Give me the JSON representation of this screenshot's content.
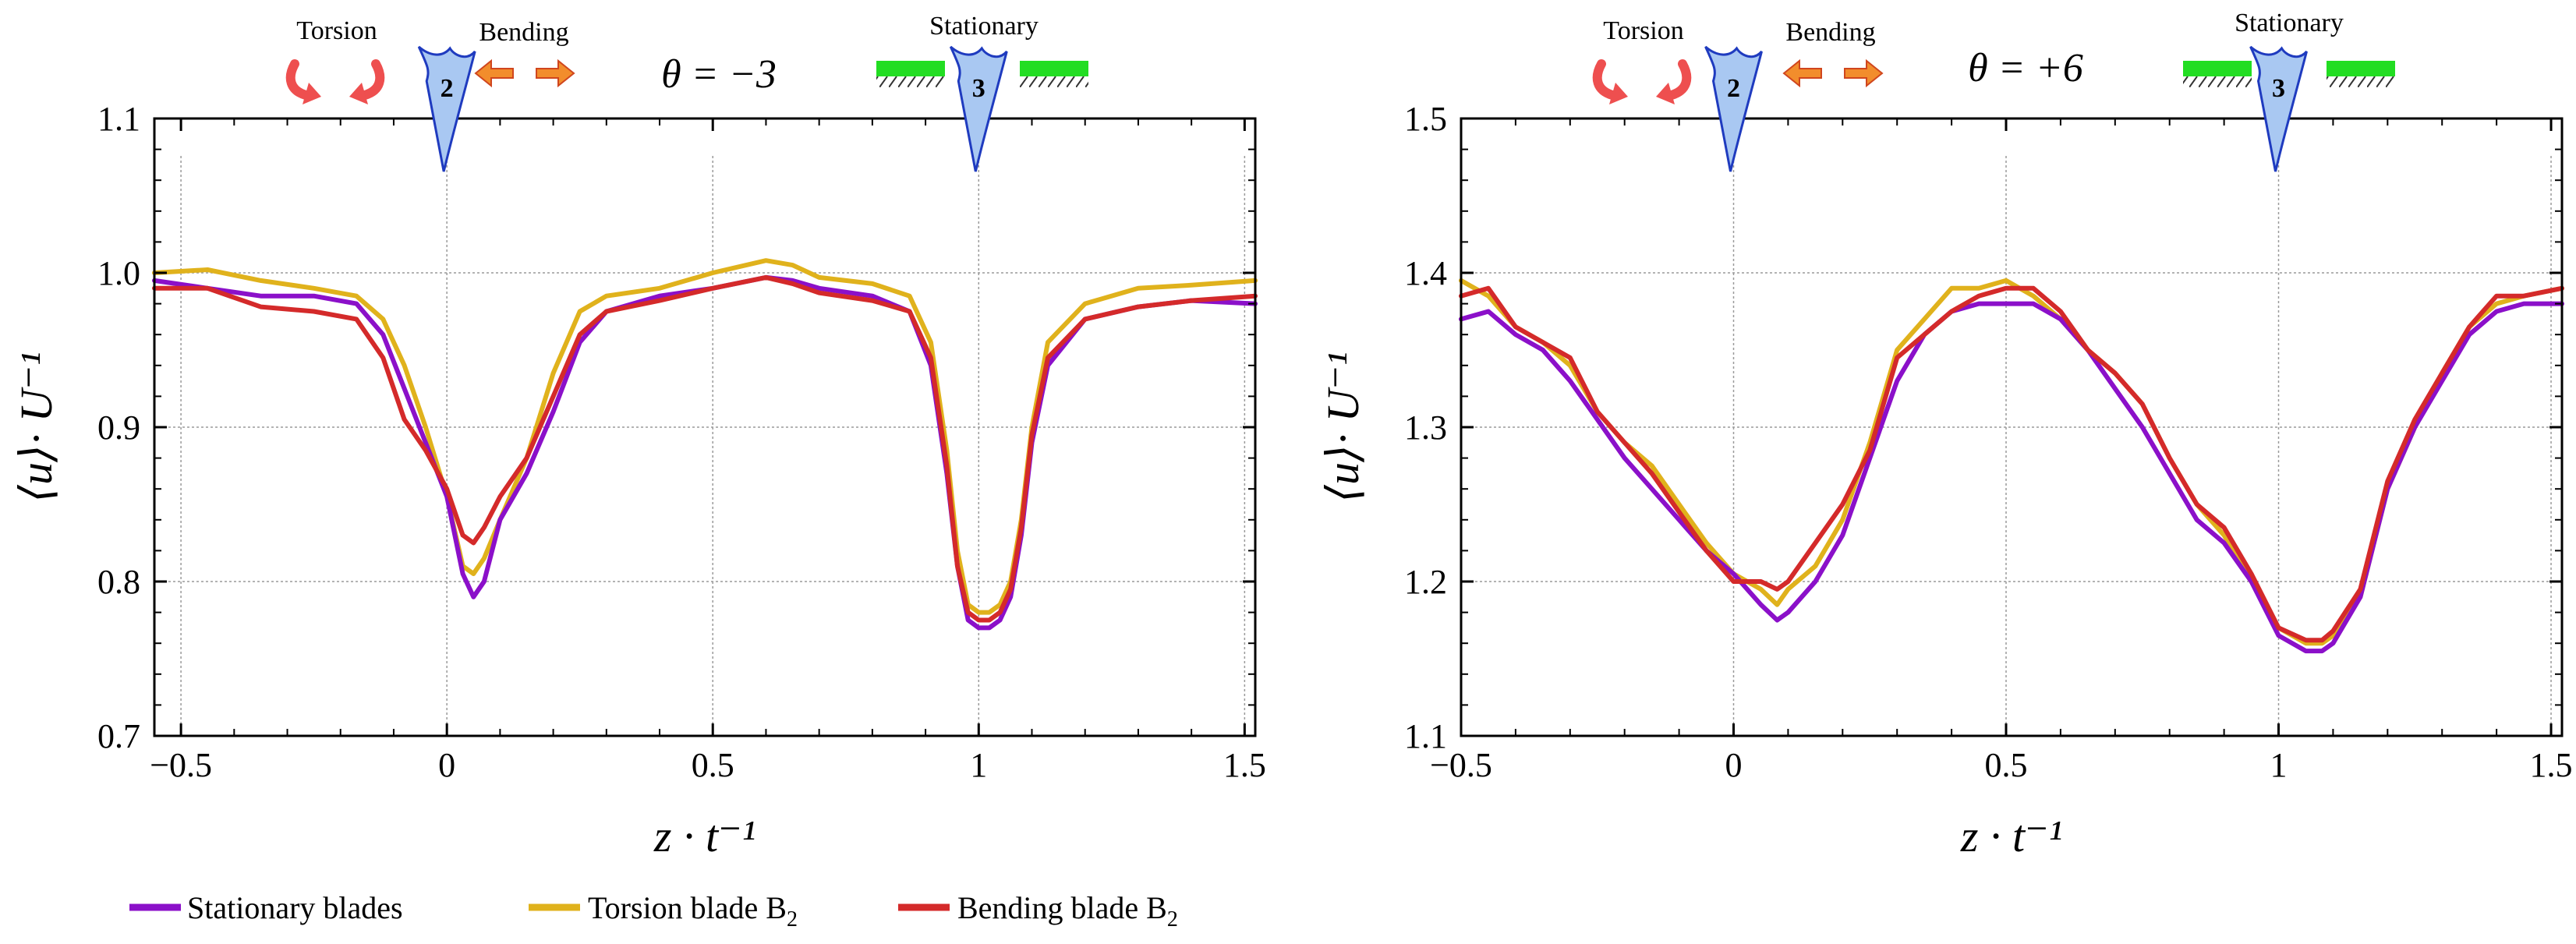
{
  "colors": {
    "stationary": "#8b10c9",
    "torsion": "#e0b21c",
    "bending": "#d42a2a",
    "grid": "#9a9a9a",
    "blade_fill": "#a9c8f2",
    "blade_stroke": "#1f3bbf",
    "arrow_red": "#ee4f4f",
    "arrow_orange": "#f28d2c",
    "ground_green": "#22dd22"
  },
  "icons": [
    "torsion-arrows-icon",
    "bending-arrows-icon",
    "blade-icon",
    "ground-hatch-icon"
  ],
  "legend": [
    {
      "key": "stationary",
      "label": "Stationary blades",
      "sub": ""
    },
    {
      "key": "torsion",
      "label": "Torsion blade B",
      "sub": "2"
    },
    {
      "key": "bending",
      "label": "Bending blade B",
      "sub": "2"
    }
  ],
  "chart_data": [
    {
      "type": "line",
      "annotations": {
        "torsion": "Torsion",
        "bending": "Bending",
        "stationary": "Stationary",
        "blade_left": "2",
        "blade_right": "3",
        "theta": "θ = −3"
      },
      "xlabel": "z · t⁻¹",
      "ylabel": "⟨u⟩· U⁻¹",
      "xlim": [
        -0.55,
        1.52
      ],
      "ylim": [
        0.7,
        1.1
      ],
      "xticks": [
        -0.5,
        0,
        0.5,
        1,
        1.5
      ],
      "xticklabels": [
        "−0.5",
        "0",
        "0.5",
        "1",
        "1.5"
      ],
      "yticks": [
        0.7,
        0.8,
        0.9,
        1.0,
        1.1
      ],
      "yticklabels": [
        "0.7",
        "0.8",
        "0.9",
        "1.0",
        "1.1"
      ],
      "series": [
        {
          "key": "stationary",
          "name": "Stationary blades",
          "x": [
            -0.55,
            -0.45,
            -0.35,
            -0.25,
            -0.17,
            -0.12,
            -0.08,
            -0.04,
            0,
            0.03,
            0.05,
            0.07,
            0.1,
            0.15,
            0.2,
            0.25,
            0.3,
            0.4,
            0.5,
            0.6,
            0.65,
            0.7,
            0.8,
            0.87,
            0.91,
            0.94,
            0.96,
            0.98,
            1,
            1.02,
            1.04,
            1.06,
            1.08,
            1.1,
            1.13,
            1.2,
            1.3,
            1.4,
            1.52
          ],
          "y": [
            0.995,
            0.99,
            0.985,
            0.985,
            0.98,
            0.96,
            0.925,
            0.89,
            0.855,
            0.805,
            0.79,
            0.8,
            0.84,
            0.87,
            0.91,
            0.955,
            0.975,
            0.985,
            0.99,
            0.997,
            0.995,
            0.99,
            0.985,
            0.975,
            0.94,
            0.87,
            0.81,
            0.775,
            0.77,
            0.77,
            0.775,
            0.79,
            0.83,
            0.89,
            0.94,
            0.97,
            0.978,
            0.982,
            0.98
          ]
        },
        {
          "key": "torsion",
          "name": "Torsion blade B2",
          "x": [
            -0.55,
            -0.45,
            -0.35,
            -0.25,
            -0.17,
            -0.12,
            -0.08,
            -0.04,
            0,
            0.03,
            0.05,
            0.07,
            0.1,
            0.15,
            0.2,
            0.25,
            0.3,
            0.4,
            0.5,
            0.6,
            0.65,
            0.7,
            0.8,
            0.87,
            0.91,
            0.94,
            0.96,
            0.98,
            1,
            1.02,
            1.04,
            1.06,
            1.08,
            1.1,
            1.13,
            1.2,
            1.3,
            1.4,
            1.52
          ],
          "y": [
            1.0,
            1.002,
            0.995,
            0.99,
            0.985,
            0.97,
            0.94,
            0.9,
            0.855,
            0.81,
            0.805,
            0.815,
            0.84,
            0.88,
            0.935,
            0.975,
            0.985,
            0.99,
            1.0,
            1.008,
            1.005,
            0.997,
            0.993,
            0.985,
            0.955,
            0.885,
            0.82,
            0.785,
            0.78,
            0.78,
            0.785,
            0.8,
            0.84,
            0.9,
            0.955,
            0.98,
            0.99,
            0.992,
            0.995
          ]
        },
        {
          "key": "bending",
          "name": "Bending blade B2",
          "x": [
            -0.55,
            -0.45,
            -0.35,
            -0.25,
            -0.17,
            -0.12,
            -0.08,
            -0.04,
            0,
            0.03,
            0.05,
            0.07,
            0.1,
            0.15,
            0.2,
            0.25,
            0.3,
            0.4,
            0.5,
            0.6,
            0.65,
            0.7,
            0.8,
            0.87,
            0.91,
            0.94,
            0.96,
            0.98,
            1,
            1.02,
            1.04,
            1.06,
            1.08,
            1.1,
            1.13,
            1.2,
            1.3,
            1.4,
            1.52
          ],
          "y": [
            0.99,
            0.99,
            0.978,
            0.975,
            0.97,
            0.945,
            0.905,
            0.885,
            0.86,
            0.83,
            0.825,
            0.835,
            0.855,
            0.88,
            0.92,
            0.96,
            0.975,
            0.982,
            0.99,
            0.997,
            0.993,
            0.987,
            0.982,
            0.975,
            0.945,
            0.875,
            0.81,
            0.78,
            0.775,
            0.775,
            0.78,
            0.795,
            0.835,
            0.895,
            0.945,
            0.97,
            0.978,
            0.982,
            0.985
          ]
        }
      ]
    },
    {
      "type": "line",
      "annotations": {
        "torsion": "Torsion",
        "bending": "Bending",
        "stationary": "Stationary",
        "blade_left": "2",
        "blade_right": "3",
        "theta": "θ = +6"
      },
      "xlabel": "z · t⁻¹",
      "ylabel": "⟨u⟩· U⁻¹",
      "xlim": [
        -0.5,
        1.52
      ],
      "ylim": [
        1.1,
        1.5
      ],
      "xticks": [
        -0.5,
        0,
        0.5,
        1,
        1.5
      ],
      "xticklabels": [
        "−0.5",
        "0",
        "0.5",
        "1",
        "1.5"
      ],
      "yticks": [
        1.1,
        1.2,
        1.3,
        1.4,
        1.5
      ],
      "yticklabels": [
        "1.1",
        "1.2",
        "1.3",
        "1.4",
        "1.5"
      ],
      "series": [
        {
          "key": "stationary",
          "name": "Stationary blades",
          "x": [
            -0.5,
            -0.45,
            -0.4,
            -0.35,
            -0.3,
            -0.25,
            -0.2,
            -0.15,
            -0.1,
            -0.05,
            0,
            0.05,
            0.08,
            0.1,
            0.15,
            0.2,
            0.25,
            0.3,
            0.35,
            0.4,
            0.45,
            0.5,
            0.55,
            0.6,
            0.65,
            0.7,
            0.75,
            0.8,
            0.85,
            0.9,
            0.95,
            1,
            1.05,
            1.08,
            1.1,
            1.15,
            1.2,
            1.25,
            1.3,
            1.35,
            1.4,
            1.45,
            1.52
          ],
          "y": [
            1.37,
            1.375,
            1.36,
            1.35,
            1.33,
            1.305,
            1.28,
            1.26,
            1.24,
            1.22,
            1.205,
            1.185,
            1.175,
            1.18,
            1.2,
            1.23,
            1.28,
            1.33,
            1.36,
            1.375,
            1.38,
            1.38,
            1.38,
            1.37,
            1.35,
            1.325,
            1.3,
            1.27,
            1.24,
            1.225,
            1.2,
            1.165,
            1.155,
            1.155,
            1.16,
            1.19,
            1.26,
            1.3,
            1.33,
            1.36,
            1.375,
            1.38,
            1.38
          ]
        },
        {
          "key": "torsion",
          "name": "Torsion blade B2",
          "x": [
            -0.5,
            -0.45,
            -0.4,
            -0.35,
            -0.3,
            -0.25,
            -0.2,
            -0.15,
            -0.1,
            -0.05,
            0,
            0.05,
            0.08,
            0.1,
            0.15,
            0.2,
            0.25,
            0.3,
            0.35,
            0.4,
            0.45,
            0.5,
            0.55,
            0.6,
            0.65,
            0.7,
            0.75,
            0.8,
            0.85,
            0.9,
            0.95,
            1,
            1.05,
            1.08,
            1.1,
            1.15,
            1.2,
            1.25,
            1.3,
            1.35,
            1.4,
            1.45,
            1.52
          ],
          "y": [
            1.395,
            1.385,
            1.365,
            1.355,
            1.34,
            1.31,
            1.29,
            1.275,
            1.25,
            1.225,
            1.205,
            1.195,
            1.185,
            1.195,
            1.21,
            1.24,
            1.29,
            1.35,
            1.37,
            1.39,
            1.39,
            1.395,
            1.385,
            1.37,
            1.35,
            1.335,
            1.315,
            1.28,
            1.25,
            1.23,
            1.2,
            1.17,
            1.16,
            1.16,
            1.165,
            1.19,
            1.26,
            1.3,
            1.335,
            1.365,
            1.38,
            1.385,
            1.39
          ]
        },
        {
          "key": "bending",
          "name": "Bending blade B2",
          "x": [
            -0.5,
            -0.45,
            -0.4,
            -0.35,
            -0.3,
            -0.25,
            -0.2,
            -0.15,
            -0.1,
            -0.05,
            0,
            0.05,
            0.08,
            0.1,
            0.15,
            0.2,
            0.25,
            0.3,
            0.35,
            0.4,
            0.45,
            0.5,
            0.55,
            0.6,
            0.65,
            0.7,
            0.75,
            0.8,
            0.85,
            0.9,
            0.95,
            1,
            1.05,
            1.08,
            1.1,
            1.15,
            1.2,
            1.25,
            1.3,
            1.35,
            1.4,
            1.45,
            1.52
          ],
          "y": [
            1.385,
            1.39,
            1.365,
            1.355,
            1.345,
            1.31,
            1.29,
            1.27,
            1.245,
            1.22,
            1.2,
            1.2,
            1.195,
            1.2,
            1.225,
            1.25,
            1.285,
            1.345,
            1.36,
            1.375,
            1.385,
            1.39,
            1.39,
            1.375,
            1.35,
            1.335,
            1.315,
            1.28,
            1.25,
            1.235,
            1.205,
            1.17,
            1.162,
            1.162,
            1.168,
            1.195,
            1.265,
            1.305,
            1.335,
            1.365,
            1.385,
            1.385,
            1.39
          ]
        }
      ]
    }
  ]
}
